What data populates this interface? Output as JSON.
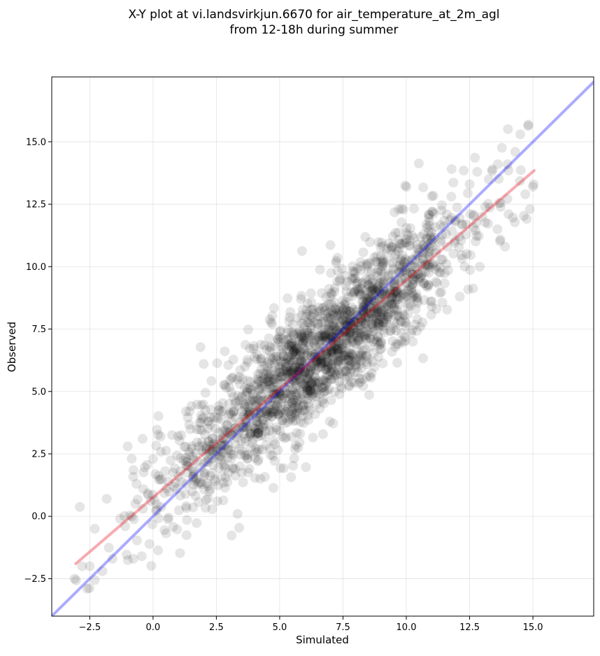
{
  "chart_data": {
    "type": "scatter",
    "title_line1": "X-Y plot at vi.landsvirkjun.6670 for air_temperature_at_2m_agl",
    "title_line2": "from 12-18h during summer",
    "xlabel": "Simulated",
    "ylabel": "Observed",
    "xlim": [
      -4.0,
      17.4
    ],
    "ylim": [
      -4.0,
      17.6
    ],
    "xticks": [
      -2.5,
      0.0,
      2.5,
      5.0,
      7.5,
      10.0,
      12.5,
      15.0
    ],
    "xtick_labels": [
      "−2.5",
      "0.0",
      "2.5",
      "5.0",
      "7.5",
      "10.0",
      "12.5",
      "15.0"
    ],
    "yticks": [
      -2.5,
      0.0,
      2.5,
      5.0,
      7.5,
      10.0,
      12.5,
      15.0
    ],
    "ytick_labels": [
      "−2.5",
      "0.0",
      "2.5",
      "5.0",
      "7.5",
      "10.0",
      "12.5",
      "15.0"
    ],
    "grid": true,
    "marker_color": "#000000",
    "marker_alpha": 0.1,
    "points": {
      "count": 2000,
      "x": [
        -3.1,
        -2.8,
        -2.6,
        -2.5,
        -2.3,
        -2.0,
        -1.6,
        -1.3,
        -1.0,
        -0.7,
        -0.4,
        0.0,
        0.3,
        0.6,
        1.0,
        1.3,
        1.8,
        2.2,
        2.7,
        3.2,
        3.6,
        4.0,
        4.4,
        4.8,
        5.1,
        5.4,
        5.8,
        6.1,
        6.5,
        6.8,
        7.2,
        7.5,
        7.9,
        8.3,
        8.7,
        9.1,
        9.5,
        9.9,
        10.4,
        10.8,
        11.2,
        11.6,
        12.1,
        12.5,
        13.0,
        13.4,
        13.9,
        14.3,
        14.7,
        15.0,
        1.4,
        3.0,
        4.6,
        6.2,
        8.0,
        9.6,
        11.0,
        12.8,
        14.0,
        -1.1,
        2.0,
        4.3,
        5.9,
        7.0,
        8.5,
        10.2,
        12.3,
        13.6,
        14.5
      ],
      "y": [
        -2.5,
        -2.0,
        -2.9,
        -2.0,
        -0.5,
        -2.2,
        -1.7,
        -0.1,
        2.8,
        0.5,
        0.3,
        2.3,
        3.2,
        1.4,
        1.6,
        4.2,
        2.8,
        3.0,
        2.4,
        3.5,
        3.3,
        4.6,
        5.2,
        4.9,
        5.6,
        5.3,
        6.2,
        5.0,
        6.3,
        7.8,
        6.0,
        6.9,
        7.5,
        8.2,
        7.4,
        9.4,
        9.9,
        10.2,
        8.9,
        11.1,
        10.0,
        12.1,
        11.2,
        13.3,
        12.0,
        13.9,
        10.8,
        14.6,
        12.9,
        13.2,
        2.0,
        4.5,
        6.8,
        7.9,
        6.2,
        10.7,
        8.4,
        13.8,
        14.1,
        -0.4,
        6.1,
        5.2,
        4.0,
        8.8,
        9.8,
        9.1,
        10.0,
        11.5,
        15.3
      ]
    },
    "series": [
      {
        "type": "line",
        "x": [
          -4.0,
          17.4
        ],
        "y": [
          -4.0,
          17.4
        ],
        "color": "#0000ff",
        "alpha": 0.33
      },
      {
        "type": "line",
        "x": [
          -3.05,
          15.05
        ],
        "y": [
          -1.9,
          13.85
        ],
        "color": "#e8000b",
        "alpha": 0.33
      }
    ]
  }
}
